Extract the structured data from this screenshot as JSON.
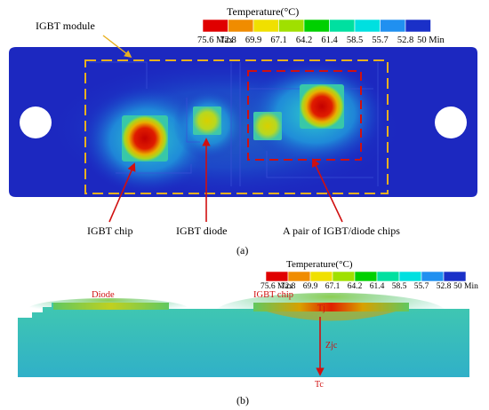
{
  "scale_top": {
    "title": "Temperature(°C)",
    "ticks": [
      "75.6 Max",
      "72.8",
      "69.9",
      "67.1",
      "64.2",
      "61.4",
      "58.5",
      "55.7",
      "52.8",
      "50 Min"
    ],
    "colors": [
      "#e00000",
      "#f08c00",
      "#f0e000",
      "#a0e000",
      "#00d000",
      "#00e0a0",
      "#00e0e0",
      "#2090f0",
      "#1a30c8"
    ]
  },
  "scale_bottom": {
    "title": "Temperature(°C)",
    "ticks": [
      "75.6 Max",
      "72.8",
      "69.9",
      "67.1",
      "64.2",
      "61.4",
      "58.5",
      "55.7",
      "52.8",
      "50 Min"
    ]
  },
  "panel_a": {
    "caption": "(a)",
    "labels": {
      "module": "IGBT module",
      "chip": "IGBT chip",
      "diode": "IGBT diode",
      "pair": "A pair of IGBT/diode chips"
    }
  },
  "panel_b": {
    "caption": "(b)",
    "labels": {
      "diode": "Diode",
      "chip": "IGBT chip",
      "tj": "Tj",
      "zjc": "Zjc",
      "tc": "Tc"
    }
  },
  "colors": {
    "annotation": "#d01010",
    "dashed_box": "#e8b020",
    "hot": "#d00000",
    "cool": "#1c28c0"
  }
}
